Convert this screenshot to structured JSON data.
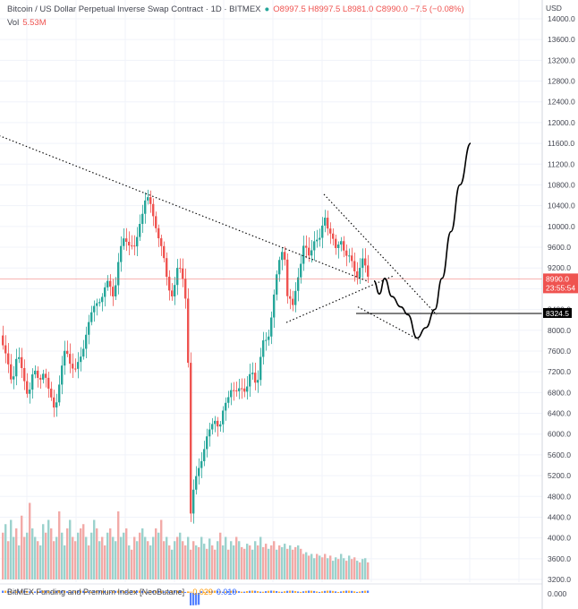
{
  "header": {
    "title": "Bitcoin / US Dollar Perpetual Inverse Swap Contract · 1D · BITMEX",
    "ohlc": "O8997.5  H8997.5  L8981.0  C8990.0  −7.5 (−0.08%)"
  },
  "volume": {
    "label": "Vol",
    "value": "5.53M"
  },
  "funding": {
    "label": "BitMEX Funding and Premium Index [NeoButane]",
    "value1": "−0.029",
    "value2": "0.010",
    "axis_value": "0.000"
  },
  "axis": {
    "currency": "USD",
    "ticks": [
      "14000.0",
      "13600.0",
      "13200.0",
      "12800.0",
      "12400.0",
      "12000.0",
      "11600.0",
      "11200.0",
      "10800.0",
      "10400.0",
      "10000.0",
      "9600.0",
      "9200.0",
      "8800.0",
      "8400.0",
      "8000.0",
      "7600.0",
      "7200.0",
      "6800.0",
      "6400.0",
      "6000.0",
      "5600.0",
      "5200.0",
      "4800.0",
      "4400.0",
      "4000.0",
      "3600.0",
      "3200.0"
    ],
    "last_price": "8990.0",
    "countdown": "23:55:54",
    "marker_price": "8324.5"
  },
  "colors": {
    "up": "#26a69a",
    "down": "#ef5350",
    "vol_up": "#9bd2cd",
    "vol_down": "#f2aaa7",
    "grid": "#f0f3fa",
    "drawing": "#000000"
  },
  "chart_data": {
    "type": "candlestick",
    "title": "Bitcoin / US Dollar Perpetual Inverse Swap Contract",
    "interval": "1D",
    "exchange": "BITMEX",
    "ylabel": "USD",
    "ylim": [
      3100,
      14150
    ],
    "last_close": 8990.0,
    "marker_level": 8324.5,
    "close_path": [
      [
        0,
        7900
      ],
      [
        6,
        7400
      ],
      [
        12,
        7000
      ],
      [
        18,
        7600
      ],
      [
        24,
        7100
      ],
      [
        30,
        6800
      ],
      [
        36,
        7200
      ],
      [
        42,
        7000
      ],
      [
        48,
        7300
      ],
      [
        54,
        6700
      ],
      [
        60,
        6500
      ],
      [
        66,
        7100
      ],
      [
        72,
        7600
      ],
      [
        78,
        7400
      ],
      [
        84,
        7200
      ],
      [
        90,
        7500
      ],
      [
        96,
        8100
      ],
      [
        102,
        8300
      ],
      [
        108,
        8600
      ],
      [
        114,
        8700
      ],
      [
        120,
        8900
      ],
      [
        126,
        8700
      ],
      [
        132,
        9400
      ],
      [
        138,
        9800
      ],
      [
        144,
        9700
      ],
      [
        150,
        9500
      ],
      [
        156,
        10200
      ],
      [
        162,
        10600
      ],
      [
        168,
        10300
      ],
      [
        174,
        10000
      ],
      [
        180,
        9500
      ],
      [
        186,
        8900
      ],
      [
        192,
        8700
      ],
      [
        198,
        9200
      ],
      [
        204,
        9000
      ],
      [
        208,
        8400
      ],
      [
        212,
        4400
      ],
      [
        216,
        5000
      ],
      [
        220,
        5400
      ],
      [
        226,
        5600
      ],
      [
        232,
        6000
      ],
      [
        238,
        6400
      ],
      [
        244,
        6000
      ],
      [
        250,
        6600
      ],
      [
        256,
        6900
      ],
      [
        262,
        6700
      ],
      [
        268,
        7000
      ],
      [
        274,
        6800
      ],
      [
        280,
        7200
      ],
      [
        286,
        7000
      ],
      [
        292,
        7700
      ],
      [
        298,
        7800
      ],
      [
        304,
        8600
      ],
      [
        310,
        9200
      ],
      [
        316,
        9700
      ],
      [
        320,
        8700
      ],
      [
        326,
        8400
      ],
      [
        332,
        9100
      ],
      [
        338,
        9600
      ],
      [
        344,
        9400
      ],
      [
        350,
        9800
      ],
      [
        356,
        9700
      ],
      [
        362,
        10200
      ],
      [
        368,
        9900
      ],
      [
        374,
        9500
      ],
      [
        380,
        9800
      ],
      [
        386,
        9400
      ],
      [
        392,
        9300
      ],
      [
        398,
        9100
      ],
      [
        404,
        9300
      ],
      [
        408,
        9150
      ],
      [
        412,
        8990
      ]
    ],
    "volume_rel": [
      0.55,
      0.65,
      0.45,
      0.7,
      0.5,
      0.6,
      0.4,
      0.75,
      0.5,
      0.55,
      0.9,
      0.6,
      0.5,
      0.45,
      0.4,
      0.65,
      0.55,
      0.7,
      0.6,
      0.45,
      0.5,
      0.8,
      0.55,
      0.4,
      0.6,
      0.7,
      0.5,
      0.45,
      0.55,
      0.6,
      0.65,
      0.5,
      0.4,
      0.55,
      0.7,
      0.6,
      0.45,
      0.5,
      0.4,
      0.55,
      0.6,
      0.5,
      0.45,
      0.8,
      0.5,
      0.55,
      0.6,
      0.4,
      0.35,
      0.5,
      0.45,
      0.55,
      0.6,
      0.5,
      0.45,
      0.4,
      0.5,
      0.6,
      0.55,
      0.7,
      0.45,
      0.5,
      0.4,
      0.35,
      0.45,
      0.5,
      0.55,
      0.45,
      0.4,
      0.5,
      0.35,
      0.45,
      0.4,
      0.38,
      0.5,
      0.42,
      0.36,
      0.48,
      0.4,
      0.35,
      0.45,
      0.55,
      0.4,
      0.5,
      0.35,
      0.45,
      0.4,
      0.5,
      0.45,
      0.38,
      0.36,
      0.42,
      0.4,
      0.35,
      0.45,
      0.4,
      0.5,
      0.38,
      0.42,
      0.36,
      0.4,
      0.45,
      0.35,
      0.4,
      0.38,
      0.42,
      0.36,
      0.4,
      0.35,
      0.38,
      0.4,
      0.36,
      0.3,
      0.32,
      0.28,
      0.3,
      0.25,
      0.3,
      0.28,
      0.26,
      0.3,
      0.25,
      0.28,
      0.22,
      0.26,
      0.24,
      0.3,
      0.25,
      0.22,
      0.28,
      0.24,
      0.26,
      0.22,
      0.2,
      0.24,
      0.25,
      0.2,
      0.22,
      0.18
    ],
    "drawings": {
      "dotted_line_1": [
        [
          -1,
          11750
        ],
        [
          410,
          8950
        ]
      ],
      "dotted_line_2": [
        [
          320,
          8150
        ],
        [
          440,
          9050
        ]
      ],
      "dotted_line_3": [
        [
          362,
          10620
        ],
        [
          488,
          8300
        ]
      ],
      "dotted_line_4": [
        [
          400,
          8450
        ],
        [
          470,
          7800
        ]
      ],
      "horizontal_line": 8324.5,
      "projection": [
        [
          418,
          8950
        ],
        [
          424,
          8700
        ],
        [
          430,
          9000
        ],
        [
          438,
          8650
        ],
        [
          448,
          8450
        ],
        [
          456,
          8300
        ],
        [
          466,
          7850
        ],
        [
          476,
          8050
        ],
        [
          486,
          8400
        ],
        [
          494,
          9000
        ],
        [
          504,
          9900
        ],
        [
          514,
          10800
        ],
        [
          526,
          11600
        ]
      ]
    }
  }
}
